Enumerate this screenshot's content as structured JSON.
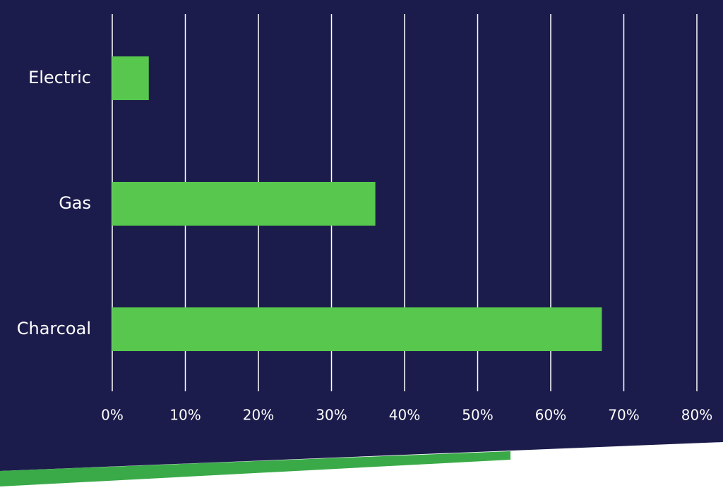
{
  "chart_data": {
    "type": "hbar",
    "categories": [
      "Electric",
      "Gas",
      "Charcoal"
    ],
    "values": [
      5,
      36,
      67
    ],
    "color": "#57c84d",
    "xlim": [
      0,
      80
    ],
    "xticks": [
      {
        "value": 0,
        "label": "0%"
      },
      {
        "value": 10,
        "label": "10%"
      },
      {
        "value": 20,
        "label": "20%"
      },
      {
        "value": 30,
        "label": "30%"
      },
      {
        "value": 40,
        "label": "40%"
      },
      {
        "value": 50,
        "label": "50%"
      },
      {
        "value": 60,
        "label": "60%"
      },
      {
        "value": 70,
        "label": "70%"
      },
      {
        "value": 80,
        "label": "80%"
      }
    ],
    "grid": true
  }
}
